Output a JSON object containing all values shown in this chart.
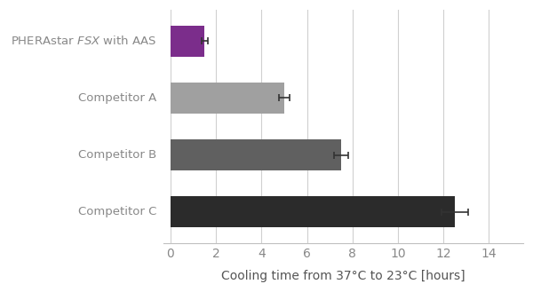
{
  "categories": [
    "Competitor C",
    "Competitor B",
    "Competitor A",
    "PHERAstar FSX with AAS"
  ],
  "values": [
    12.5,
    7.5,
    5.0,
    1.5
  ],
  "errors": [
    0.6,
    0.3,
    0.25,
    0.15
  ],
  "colors": [
    "#2b2b2b",
    "#606060",
    "#a0a0a0",
    "#7b2d8b"
  ],
  "xlabel": "Cooling time from 37°C to 23°C [hours]",
  "xlim": [
    -0.3,
    15.5
  ],
  "xticks": [
    0,
    2,
    4,
    6,
    8,
    10,
    12,
    14
  ],
  "bar_height": 0.55,
  "background_color": "#ffffff",
  "grid_color": "#d0d0d0",
  "label_color": "#888888",
  "xlabel_fontsize": 10,
  "tick_fontsize": 10
}
